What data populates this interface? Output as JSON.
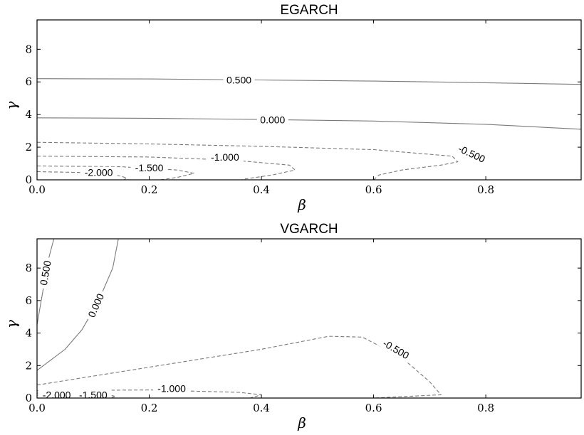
{
  "chart_data": [
    {
      "type": "contour",
      "title": "EGARCH",
      "xlabel": "β",
      "ylabel": "γ",
      "xlim": [
        0.0,
        0.97
      ],
      "ylim": [
        0,
        9.8
      ],
      "xticks": [
        "0.0",
        "0.2",
        "0.4",
        "0.6",
        "0.8"
      ],
      "yticks": [
        "0",
        "2",
        "4",
        "6",
        "8"
      ],
      "xtick_values": [
        0.0,
        0.2,
        0.4,
        0.6,
        0.8
      ],
      "ytick_values": [
        0,
        2,
        4,
        6,
        8
      ],
      "contours": [
        {
          "level": "0.500",
          "style": "solid",
          "points": [
            [
              0.0,
              6.2
            ],
            [
              0.2,
              6.18
            ],
            [
              0.4,
              6.12
            ],
            [
              0.6,
              6.05
            ],
            [
              0.8,
              5.95
            ],
            [
              0.97,
              5.85
            ]
          ],
          "label_at": [
            0.36,
            6.13
          ],
          "label_angle": 0
        },
        {
          "level": "0.000",
          "style": "solid",
          "points": [
            [
              0.0,
              3.8
            ],
            [
              0.2,
              3.77
            ],
            [
              0.4,
              3.7
            ],
            [
              0.6,
              3.6
            ],
            [
              0.8,
              3.4
            ],
            [
              0.97,
              3.1
            ]
          ],
          "label_at": [
            0.42,
            3.68
          ],
          "label_angle": 0
        },
        {
          "level": "-0.500",
          "style": "dashed",
          "points": [
            [
              0.0,
              2.3
            ],
            [
              0.2,
              2.2
            ],
            [
              0.4,
              2.05
            ],
            [
              0.6,
              1.85
            ],
            [
              0.74,
              1.45
            ],
            [
              0.75,
              1.1
            ],
            [
              0.72,
              0.9
            ],
            [
              0.65,
              0.6
            ],
            [
              0.61,
              0.3
            ],
            [
              0.6,
              0.0
            ]
          ],
          "label_at": [
            0.775,
            1.6
          ],
          "label_angle": 25
        },
        {
          "level": "-1.000",
          "style": "dashed",
          "points": [
            [
              0.0,
              1.45
            ],
            [
              0.2,
              1.4
            ],
            [
              0.35,
              1.2
            ],
            [
              0.45,
              0.9
            ],
            [
              0.46,
              0.6
            ],
            [
              0.42,
              0.3
            ],
            [
              0.37,
              0.05
            ],
            [
              0.365,
              0.0
            ]
          ],
          "label_at": [
            0.335,
            1.4
          ],
          "label_angle": 0
        },
        {
          "level": "-1.500",
          "style": "dashed",
          "points": [
            [
              0.0,
              0.85
            ],
            [
              0.15,
              0.8
            ],
            [
              0.25,
              0.6
            ],
            [
              0.28,
              0.4
            ],
            [
              0.25,
              0.15
            ],
            [
              0.22,
              0.0
            ]
          ],
          "label_at": [
            0.2,
            0.75
          ],
          "label_angle": 0
        },
        {
          "level": "-2.000",
          "style": "dashed",
          "points": [
            [
              0.0,
              0.5
            ],
            [
              0.08,
              0.45
            ],
            [
              0.14,
              0.3
            ],
            [
              0.16,
              0.12
            ],
            [
              0.155,
              0.0
            ]
          ],
          "label_at": [
            0.11,
            0.45
          ],
          "label_angle": 0
        }
      ]
    },
    {
      "type": "contour",
      "title": "VGARCH",
      "xlabel": "β",
      "ylabel": "γ",
      "xlim": [
        0.0,
        0.97
      ],
      "ylim": [
        0,
        9.8
      ],
      "xticks": [
        "0.0",
        "0.2",
        "0.4",
        "0.6",
        "0.8"
      ],
      "yticks": [
        "0",
        "2",
        "4",
        "6",
        "8"
      ],
      "xtick_values": [
        0.0,
        0.2,
        0.4,
        0.6,
        0.8
      ],
      "ytick_values": [
        0,
        2,
        4,
        6,
        8
      ],
      "contours": [
        {
          "level": "0.500",
          "style": "solid",
          "points": [
            [
              0.0,
              4.5
            ],
            [
              0.005,
              5.5
            ],
            [
              0.01,
              6.5
            ],
            [
              0.015,
              7.5
            ],
            [
              0.02,
              8.5
            ],
            [
              0.03,
              9.8
            ]
          ],
          "label_at": [
            0.015,
            7.7
          ],
          "label_angle": -80
        },
        {
          "level": "0.000",
          "style": "solid",
          "points": [
            [
              0.0,
              1.7
            ],
            [
              0.05,
              3.0
            ],
            [
              0.08,
              4.2
            ],
            [
              0.11,
              6.0
            ],
            [
              0.135,
              8.0
            ],
            [
              0.145,
              9.8
            ]
          ],
          "label_at": [
            0.105,
            5.7
          ],
          "label_angle": -66
        },
        {
          "level": "-0.500",
          "style": "dashed",
          "points": [
            [
              0.0,
              0.8
            ],
            [
              0.2,
              1.9
            ],
            [
              0.4,
              3.0
            ],
            [
              0.52,
              3.8
            ],
            [
              0.58,
              3.75
            ],
            [
              0.65,
              2.5
            ],
            [
              0.7,
              1.0
            ],
            [
              0.72,
              0.2
            ],
            [
              0.6,
              0.0
            ]
          ],
          "label_at": [
            0.64,
            3.0
          ],
          "label_angle": 30
        },
        {
          "level": "-1.000",
          "style": "dashed",
          "points": [
            [
              0.0,
              0.45
            ],
            [
              0.2,
              0.5
            ],
            [
              0.36,
              0.35
            ],
            [
              0.4,
              0.2
            ],
            [
              0.38,
              0.0
            ]
          ],
          "label_at": [
            0.24,
            0.58
          ],
          "label_angle": 0
        },
        {
          "level": "-1.500",
          "style": "dashed",
          "points": [
            [
              0.0,
              0.3
            ],
            [
              0.12,
              0.25
            ],
            [
              0.14,
              0.1
            ],
            [
              0.13,
              0.0
            ]
          ],
          "label_at": [
            0.1,
            0.2
          ],
          "label_angle": 0
        },
        {
          "level": "-2.000",
          "style": "dashed",
          "points": [
            [
              0.0,
              0.18
            ],
            [
              0.05,
              0.15
            ],
            [
              0.07,
              0.05
            ],
            [
              0.065,
              0.0
            ]
          ],
          "label_at": [
            0.035,
            0.2
          ],
          "label_angle": 0
        }
      ]
    }
  ]
}
